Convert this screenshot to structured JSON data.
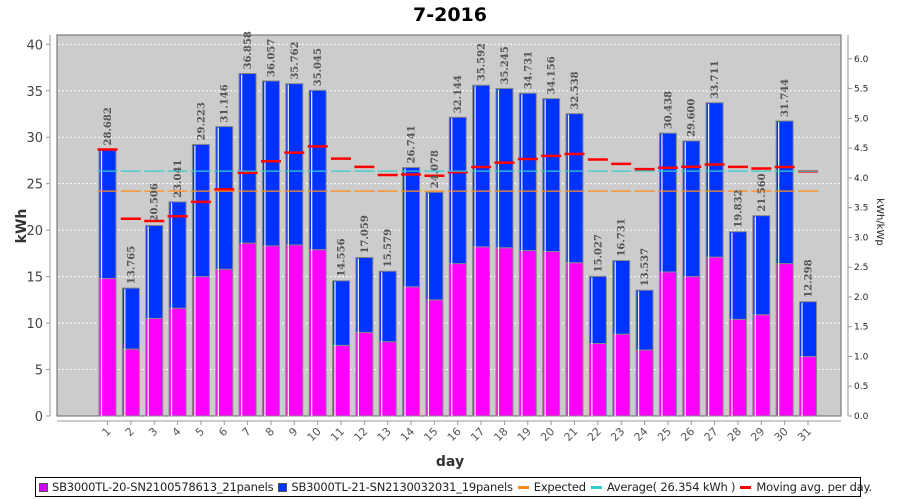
{
  "chart_data": {
    "type": "bar",
    "stacked": true,
    "title": "7-2016",
    "xlabel": "day",
    "ylabel": "kWh",
    "y2label": "kWh/kWp",
    "ylim": [
      0,
      41
    ],
    "y2lim": [
      0,
      6.4
    ],
    "yticks": [
      "0",
      "5",
      "10",
      "15",
      "20",
      "25",
      "30",
      "35",
      "40"
    ],
    "y2ticks": [
      "0.0",
      "0.5",
      "1.0",
      "1.5",
      "2.0",
      "2.5",
      "3.0",
      "3.5",
      "4.0",
      "4.5",
      "5.0",
      "5.5",
      "6.0"
    ],
    "grid": true,
    "legend_position": "bottom",
    "categories": [
      "1",
      "2",
      "3",
      "4",
      "5",
      "6",
      "7",
      "8",
      "9",
      "10",
      "11",
      "12",
      "13",
      "14",
      "15",
      "16",
      "17",
      "18",
      "19",
      "20",
      "21",
      "22",
      "23",
      "24",
      "25",
      "26",
      "27",
      "28",
      "29",
      "30",
      "31"
    ],
    "series": [
      {
        "name": "SB3000TL-20-SN2100578613_21panels",
        "color": "#ff00ff",
        "values": [
          14.8,
          7.2,
          10.5,
          11.6,
          15.0,
          15.8,
          18.6,
          18.3,
          18.4,
          17.9,
          7.6,
          9.0,
          8.0,
          13.9,
          12.5,
          16.4,
          18.2,
          18.1,
          17.8,
          17.7,
          16.5,
          7.8,
          8.8,
          7.1,
          15.5,
          15.0,
          17.1,
          10.4,
          10.9,
          16.4,
          6.4
        ]
      },
      {
        "name": "SB3000TL-21-SN2130032031_19panels",
        "color": "#0033ff",
        "values": [
          13.882,
          6.565,
          10.006,
          11.441,
          14.223,
          15.346,
          18.258,
          17.757,
          17.362,
          17.145,
          6.956,
          8.059,
          7.579,
          12.841,
          11.578,
          15.744,
          17.392,
          17.145,
          16.931,
          16.456,
          16.038,
          7.227,
          7.931,
          6.437,
          14.938,
          14.6,
          16.611,
          9.432,
          10.66,
          15.344,
          5.898
        ]
      }
    ],
    "totals": [
      "28.682",
      "13.765",
      "20.506",
      "23.041",
      "29.223",
      "31.146",
      "36.858",
      "36.057",
      "35.762",
      "35.045",
      "14.556",
      "17.059",
      "15.579",
      "26.741",
      "24.078",
      "32.144",
      "35.592",
      "35.245",
      "34.731",
      "34.156",
      "32.538",
      "15.027",
      "16.731",
      "13.537",
      "30.438",
      "29.600",
      "33.711",
      "19.832",
      "21.560",
      "31.744",
      "12.298"
    ],
    "lines": {
      "expected": {
        "name": "Expected",
        "color": "#ff8c1a",
        "value": 24.2
      },
      "average": {
        "name": "Average( 26.354 kWh )",
        "color": "#33cccc",
        "value": 26.354
      },
      "moving_avg": {
        "name": "Moving avg. per day.",
        "color": "#ff0000",
        "values": [
          28.68,
          21.22,
          20.98,
          21.5,
          23.04,
          24.39,
          26.17,
          27.41,
          28.34,
          29.01,
          27.69,
          26.81,
          25.94,
          25.99,
          25.86,
          26.25,
          26.8,
          27.27,
          27.66,
          27.99,
          28.2,
          27.6,
          27.13,
          26.56,
          26.71,
          26.82,
          27.07,
          26.81,
          26.63,
          26.8,
          26.33
        ]
      }
    }
  },
  "legend": {
    "items": [
      {
        "label": "SB3000TL-20-SN2100578613_21panels",
        "kind": "box",
        "color": "#cc00ff"
      },
      {
        "label": "SB3000TL-21-SN2130032031_19panels",
        "kind": "box",
        "color": "#0033ff"
      },
      {
        "label": "Expected",
        "kind": "line",
        "color": "#ff8c1a"
      },
      {
        "label": "Average( 26.354 kWh )",
        "kind": "line",
        "color": "#33cccc"
      },
      {
        "label": "Moving avg. per day.",
        "kind": "line",
        "color": "#ff0000"
      }
    ]
  }
}
